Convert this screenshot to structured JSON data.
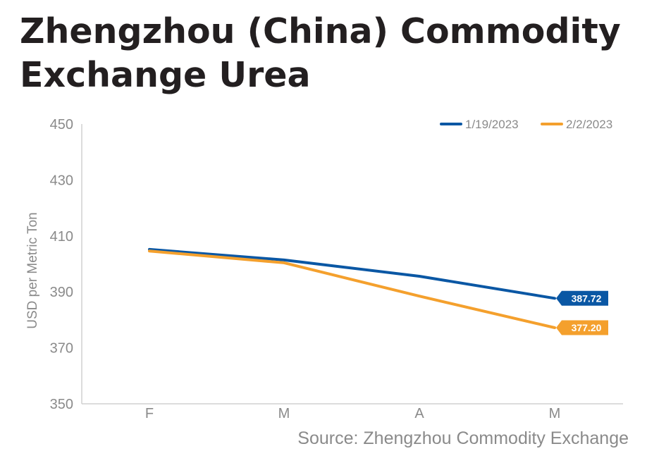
{
  "chart_data": {
    "type": "line",
    "title": "Zhengzhou (China) Commodity Exchange Urea",
    "ylabel": "USD per Metric Ton",
    "xlabel": "",
    "categories": [
      "F",
      "M",
      "A",
      "M"
    ],
    "ylim": [
      350,
      450
    ],
    "yticks": [
      350,
      370,
      390,
      410,
      430,
      450
    ],
    "legend_position": "top-right",
    "series": [
      {
        "name": "1/19/2023",
        "color": "#0a57a4",
        "values": [
          405.2,
          401.4,
          395.6,
          387.72
        ],
        "end_label": "387.72"
      },
      {
        "name": "2/2/2023",
        "color": "#f4a02d",
        "values": [
          404.6,
          400.4,
          388.5,
          377.2
        ],
        "end_label": "377.20"
      }
    ],
    "source": "Source: Zhengzhou Commodity Exchange"
  }
}
